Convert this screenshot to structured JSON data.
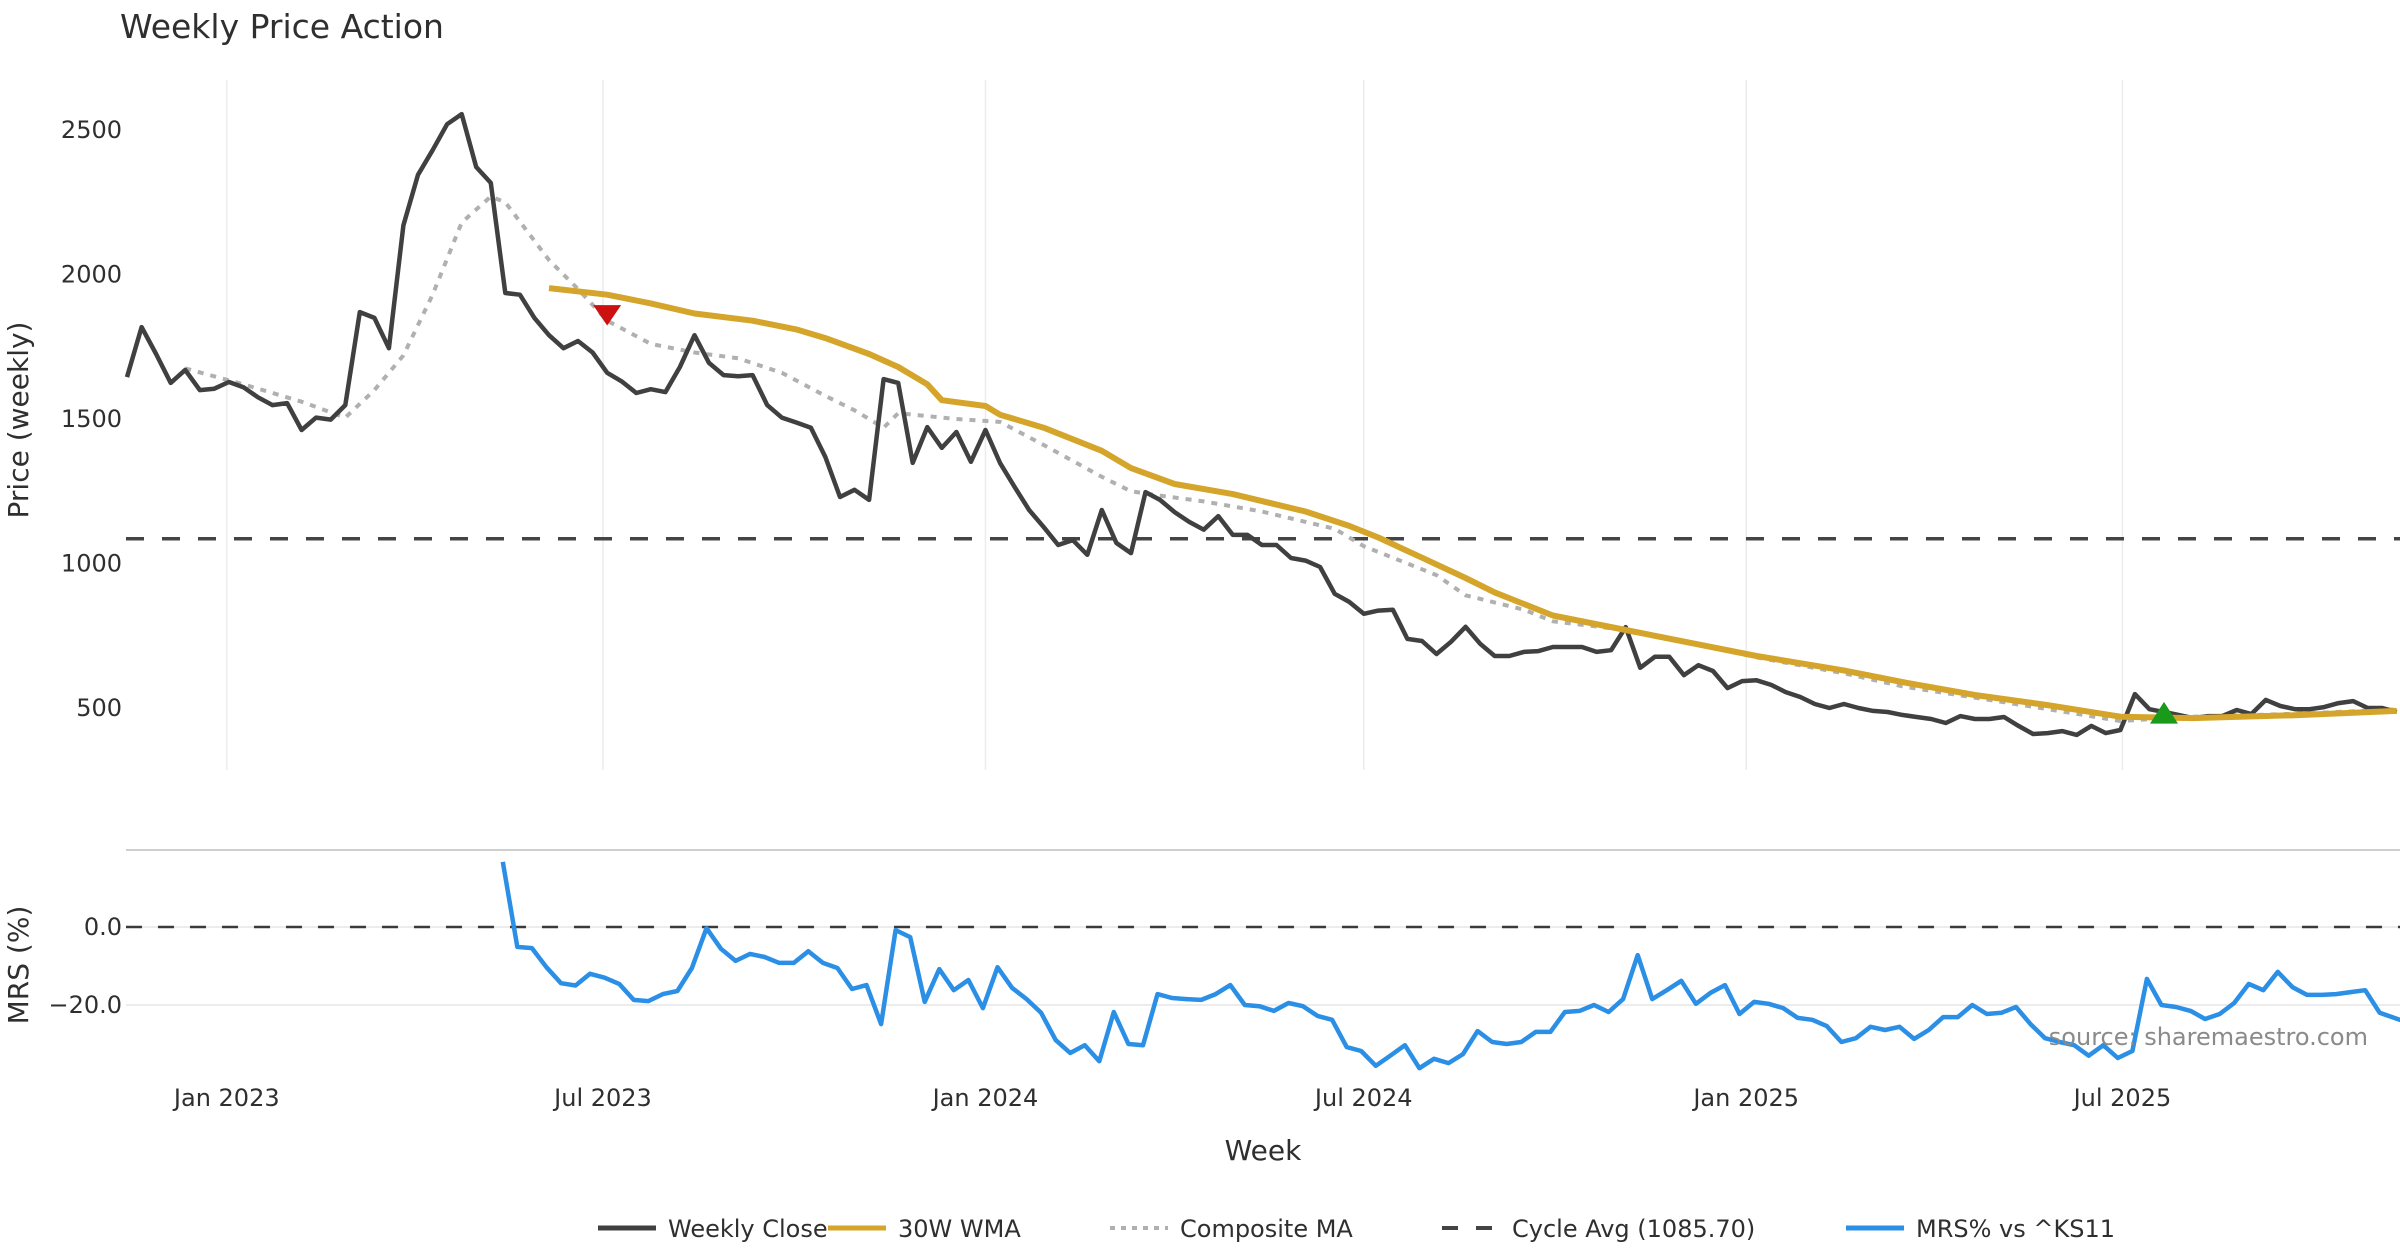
{
  "chart_data": [
    {
      "type": "line",
      "panel": "price",
      "title": "Weekly Price Action",
      "xlabel": "Week",
      "ylabel": "Price (weekly)",
      "ylim": [
        270,
        2650
      ],
      "yticks": [
        500,
        1000,
        1500,
        2000,
        2500
      ],
      "xticks": [
        {
          "label": "Jan 2023",
          "date": "2023-01-01"
        },
        {
          "label": "Jul 2023",
          "date": "2023-07-01"
        },
        {
          "label": "Jan 2024",
          "date": "2024-01-01"
        },
        {
          "label": "Jul 2024",
          "date": "2024-07-01"
        },
        {
          "label": "Jan 2025",
          "date": "2025-01-01"
        },
        {
          "label": "Jul 2025",
          "date": "2025-07-01"
        }
      ],
      "x_start": "2022-11-14",
      "x_step_days": 7,
      "grid": "vertical",
      "series": [
        {
          "name": "Weekly Close",
          "color": "#404040",
          "values": [
            1645,
            1818,
            1725,
            1625,
            1670,
            1600,
            1605,
            1628,
            1610,
            1575,
            1548,
            1555,
            1462,
            1505,
            1498,
            1548,
            1870,
            1850,
            1745,
            2170,
            2345,
            2430,
            2520,
            2555,
            2372,
            2317,
            1936,
            1930,
            1850,
            1790,
            1745,
            1770,
            1730,
            1660,
            1630,
            1590,
            1603,
            1593,
            1680,
            1790,
            1694,
            1652,
            1648,
            1652,
            1548,
            1505,
            1488,
            1470,
            1368,
            1230,
            1255,
            1220,
            1638,
            1625,
            1348,
            1472,
            1400,
            1455,
            1352,
            1462,
            1348,
            1265,
            1185,
            1126,
            1064,
            1081,
            1030,
            1185,
            1071,
            1036,
            1247,
            1220,
            1178,
            1144,
            1117,
            1164,
            1099,
            1099,
            1064,
            1064,
            1019,
            1010,
            988,
            895,
            867,
            826,
            837,
            840,
            739,
            732,
            687,
            729,
            781,
            722,
            680,
            680,
            694,
            697,
            711,
            711,
            711,
            694,
            700,
            780,
            639,
            677,
            677,
            614,
            648,
            628,
            569,
            593,
            596,
            580,
            555,
            538,
            514,
            500,
            514,
            500,
            490,
            486,
            476,
            469,
            462,
            448,
            472,
            462,
            462,
            469,
            438,
            410,
            413,
            420,
            407,
            438,
            413,
            424,
            548,
            496,
            486,
            476,
            465,
            472,
            472,
            493,
            479,
            528,
            507,
            496,
            496,
            503,
            517,
            524,
            500,
            500,
            486
          ]
        },
        {
          "name": "30W WMA",
          "color": "#d4a52a",
          "points": [
            [
              29,
              1953
            ],
            [
              33,
              1930
            ],
            [
              36,
              1900
            ],
            [
              39,
              1865
            ],
            [
              43,
              1840
            ],
            [
              46,
              1810
            ],
            [
              48,
              1780
            ],
            [
              51,
              1725
            ],
            [
              53,
              1680
            ],
            [
              55,
              1620
            ],
            [
              56,
              1565
            ],
            [
              59,
              1545
            ],
            [
              60,
              1515
            ],
            [
              63,
              1470
            ],
            [
              67,
              1390
            ],
            [
              69,
              1330
            ],
            [
              72,
              1275
            ],
            [
              76,
              1240
            ],
            [
              81,
              1180
            ],
            [
              84,
              1130
            ],
            [
              86,
              1090
            ],
            [
              89,
              1020
            ],
            [
              92,
              950
            ],
            [
              94,
              900
            ],
            [
              98,
              820
            ],
            [
              103,
              770
            ],
            [
              108,
              720
            ],
            [
              112,
              680
            ],
            [
              118,
              630
            ],
            [
              122,
              590
            ],
            [
              127,
              545
            ],
            [
              132,
              510
            ],
            [
              137,
              470
            ],
            [
              142,
              465
            ],
            [
              149,
              475
            ],
            [
              156,
              490
            ]
          ]
        },
        {
          "name": "Composite MA",
          "color": "#b0b0b0",
          "points": [
            [
              4,
              1675
            ],
            [
              8,
              1620
            ],
            [
              12,
              1560
            ],
            [
              15,
              1505
            ],
            [
              17,
              1600
            ],
            [
              19,
              1720
            ],
            [
              21,
              1930
            ],
            [
              23,
              2180
            ],
            [
              25,
              2270
            ],
            [
              26,
              2250
            ],
            [
              29,
              2050
            ],
            [
              31,
              1950
            ],
            [
              33,
              1840
            ],
            [
              36,
              1760
            ],
            [
              39,
              1730
            ],
            [
              42,
              1710
            ],
            [
              45,
              1660
            ],
            [
              48,
              1580
            ],
            [
              50,
              1530
            ],
            [
              52,
              1470
            ],
            [
              53,
              1520
            ],
            [
              57,
              1500
            ],
            [
              60,
              1490
            ],
            [
              63,
              1410
            ],
            [
              67,
              1300
            ],
            [
              69,
              1250
            ],
            [
              71,
              1235
            ],
            [
              74,
              1215
            ],
            [
              78,
              1180
            ],
            [
              83,
              1120
            ],
            [
              85,
              1060
            ],
            [
              90,
              960
            ],
            [
              92,
              890
            ],
            [
              96,
              840
            ],
            [
              98,
              800
            ],
            [
              103,
              770
            ],
            [
              108,
              720
            ],
            [
              112,
              675
            ],
            [
              118,
              620
            ],
            [
              122,
              575
            ],
            [
              129,
              520
            ],
            [
              134,
              480
            ],
            [
              137,
              455
            ],
            [
              142,
              470
            ],
            [
              149,
              480
            ],
            [
              156,
              495
            ]
          ]
        },
        {
          "name": "Cycle Avg (1085.70)",
          "color": "#444444",
          "value": 1085.7
        }
      ],
      "markers": [
        {
          "type": "sell",
          "shape": "triangle-down",
          "color": "#cc1111",
          "week_index": 33,
          "value": 1860
        },
        {
          "type": "buy",
          "shape": "triangle-up",
          "color": "#1a9a1a",
          "week_index": 140,
          "value": 480
        }
      ]
    },
    {
      "type": "line",
      "panel": "mrs",
      "ylabel": "MRS (%)",
      "ylim": [
        -39,
        19.5
      ],
      "yticks": [
        0.0,
        -20.0
      ],
      "ytick_labels": [
        "0.0",
        "−20.0"
      ],
      "zero_line": 0.0,
      "series": [
        {
          "name": "MRS% vs ^KS11",
          "color": "#2b8fe6",
          "start_index": 25,
          "values": [
            16.7,
            -5.1,
            -5.4,
            -10.3,
            -14.4,
            -15,
            -12,
            -13,
            -14.6,
            -18.7,
            -19,
            -17.2,
            -16.4,
            -10.5,
            -0.3,
            -5.6,
            -8.7,
            -6.9,
            -7.7,
            -9.2,
            -9.2,
            -6.2,
            -9.2,
            -10.5,
            -15.9,
            -14.9,
            -24.9,
            -0.8,
            -2.6,
            -19.2,
            -10.8,
            -16.2,
            -13.6,
            -20.8,
            -10.3,
            -15.6,
            -18.5,
            -22,
            -29,
            -32.3,
            -30.3,
            -34.4,
            -21.8,
            -30,
            -30.3,
            -17.2,
            -18.2,
            -18.5,
            -18.7,
            -17.2,
            -14.9,
            -20,
            -20.3,
            -21.5,
            -19.5,
            -20.3,
            -22.8,
            -23.8,
            -30.8,
            -31.8,
            -35.6,
            -33,
            -30.3,
            -36.2,
            -33.8,
            -34.9,
            -32.6,
            -26.7,
            -29.5,
            -30,
            -29.5,
            -26.9,
            -26.9,
            -21.8,
            -21.5,
            -20,
            -21.8,
            -18.5,
            -7.2,
            -18.5,
            -16.2,
            -13.8,
            -19.7,
            -16.9,
            -14.9,
            -22.3,
            -19.2,
            -19.7,
            -20.8,
            -23.3,
            -23.8,
            -25.4,
            -29.5,
            -28.5,
            -25.6,
            -26.4,
            -25.6,
            -28.7,
            -26.4,
            -23.1,
            -23.1,
            -20,
            -22.3,
            -22,
            -20.5,
            -24.9,
            -28.5,
            -29.5,
            -30.3,
            -33,
            -30.3,
            -33.6,
            -31.8,
            -13.3,
            -20,
            -20.5,
            -21.5,
            -23.6,
            -22.3,
            -19.5,
            -14.6,
            -16.2,
            -11.5,
            -15.4,
            -17.4,
            -17.4,
            -17.2,
            -16.7,
            -16.2,
            -22,
            -23.3,
            -24.6
          ]
        }
      ]
    }
  ],
  "legend": {
    "placement": "bottom-center",
    "items": [
      {
        "label": "Weekly Close",
        "color": "#404040",
        "style": "solid"
      },
      {
        "label": "30W WMA",
        "color": "#d4a52a",
        "style": "solid"
      },
      {
        "label": "Composite MA",
        "color": "#b0b0b0",
        "style": "dotted"
      },
      {
        "label": "Cycle Avg (1085.70)",
        "color": "#444444",
        "style": "dashed"
      },
      {
        "label": "MRS% vs ^KS11",
        "color": "#2b8fe6",
        "style": "solid"
      }
    ]
  },
  "source_note": "source: sharemaestro.com"
}
